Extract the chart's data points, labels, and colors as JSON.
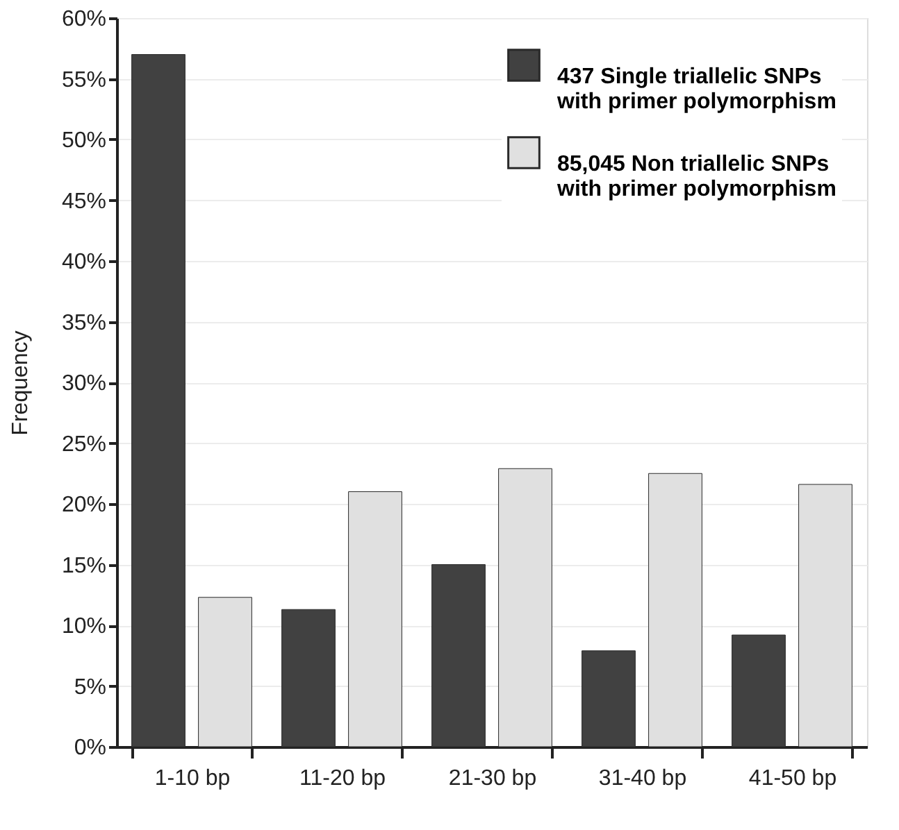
{
  "chart_data": {
    "type": "bar",
    "ylabel": "Frequency",
    "categories": [
      "1-10 bp",
      "11-20 bp",
      "21-30 bp",
      "31-40 bp",
      "41-50 bp"
    ],
    "series": [
      {
        "name": "437  Single triallelic SNPs\nwith primer polymorphism",
        "color": "#414141",
        "values": [
          57.0,
          11.3,
          15.0,
          7.9,
          9.2
        ]
      },
      {
        "name": "85,045  Non triallelic SNPs\nwith primer polymorphism",
        "color": "#e0e0e0",
        "values": [
          12.3,
          21.0,
          22.9,
          22.5,
          21.6
        ]
      }
    ],
    "ylim": [
      0,
      60
    ],
    "yticks": [
      {
        "value": 0,
        "label": "0%"
      },
      {
        "value": 5,
        "label": "5%"
      },
      {
        "value": 10,
        "label": "10%"
      },
      {
        "value": 15,
        "label": "15%"
      },
      {
        "value": 20,
        "label": "20%"
      },
      {
        "value": 25,
        "label": "25%"
      },
      {
        "value": 30,
        "label": "30%"
      },
      {
        "value": 35,
        "label": "35%"
      },
      {
        "value": 40,
        "label": "40%"
      },
      {
        "value": 45,
        "label": "45%"
      },
      {
        "value": 50,
        "label": "50%"
      },
      {
        "value": 55,
        "label": "55%"
      },
      {
        "value": 60,
        "label": "60%"
      }
    ],
    "grid": "y",
    "legend": "top right"
  }
}
